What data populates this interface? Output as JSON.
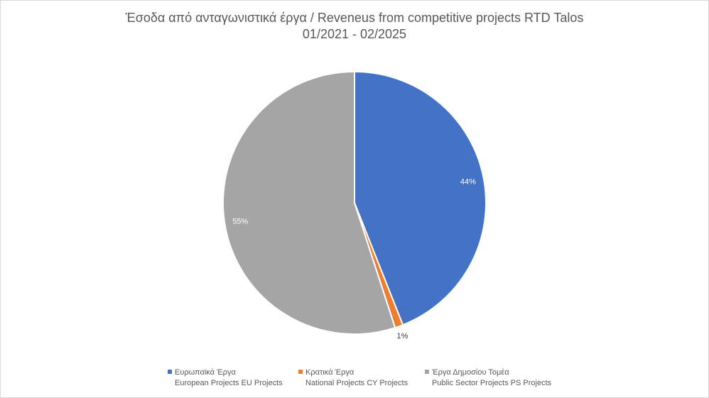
{
  "chart_data": {
    "type": "pie",
    "title": "Έσοδα από ανταγωνιστικά έργα / Reveneus from competitive projects RTD Talos",
    "subtitle": "01/2021 - 02/2025",
    "categories": [
      "Ευρωπαϊκά Έργα European Projects EU Projects",
      "Κρατικά Έργα National Projects CY Projects",
      "Έργα Δημοσίου Τομέα Public Sector Projects PS Projects"
    ],
    "values": [
      44,
      1,
      55
    ],
    "data_labels": [
      "44%",
      "1%",
      "55%"
    ],
    "colors": [
      "#4472C4",
      "#ED7D31",
      "#A5A5A5"
    ],
    "legend_position": "bottom",
    "legend": [
      {
        "line1": "Ευρωπαϊκά Έργα",
        "line2": "European Projects EU Projects",
        "color": "#4472C4"
      },
      {
        "line1": "Κρατικά Έργα",
        "line2": "National Projects CY Projects",
        "color": "#ED7D31"
      },
      {
        "line1": "Έργα Δημοσίου Τομέα",
        "line2": "Public Sector Projects PS Projects",
        "color": "#A5A5A5"
      }
    ]
  }
}
